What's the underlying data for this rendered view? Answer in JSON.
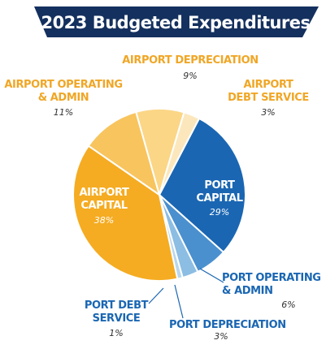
{
  "chart_data": {
    "type": "pie",
    "title": "2023 Budgeted Expenditures",
    "slices": [
      {
        "label": [
          "PORT",
          "CAPITAL"
        ],
        "value": 29,
        "pct_label": "29%",
        "color": "#1a66b3"
      },
      {
        "label": [
          "PORT OPERATING",
          "& ADMIN"
        ],
        "value": 6,
        "pct_label": "6%",
        "color": "#4a90cf"
      },
      {
        "label": [
          "PORT DEPRECIATION"
        ],
        "value": 3,
        "pct_label": "3%",
        "color": "#8cbde3"
      },
      {
        "label": [
          "PORT DEBT",
          "SERVICE"
        ],
        "value": 1,
        "pct_label": "1%",
        "color": "#b8d7ee"
      },
      {
        "label": [
          "AIRPORT",
          "CAPITAL"
        ],
        "value": 38,
        "pct_label": "38%",
        "color": "#f5ac22"
      },
      {
        "label": [
          "AIRPORT OPERATING",
          "& ADMIN"
        ],
        "value": 11,
        "pct_label": "11%",
        "color": "#f8c45e"
      },
      {
        "label": [
          "AIRPORT DEPRECIATION"
        ],
        "value": 9,
        "pct_label": "9%",
        "color": "#fbd686"
      },
      {
        "label": [
          "AIRPORT",
          "DEBT SERVICE"
        ],
        "value": 3,
        "pct_label": "3%",
        "color": "#fce7bd"
      }
    ]
  },
  "colors": {
    "banner": "#14305e",
    "port_text": "#1a66b3",
    "airport_text": "#f0a625",
    "pct_text": "#333333",
    "slice_border": "#ffffff",
    "leader_line": "#1a66b3"
  }
}
